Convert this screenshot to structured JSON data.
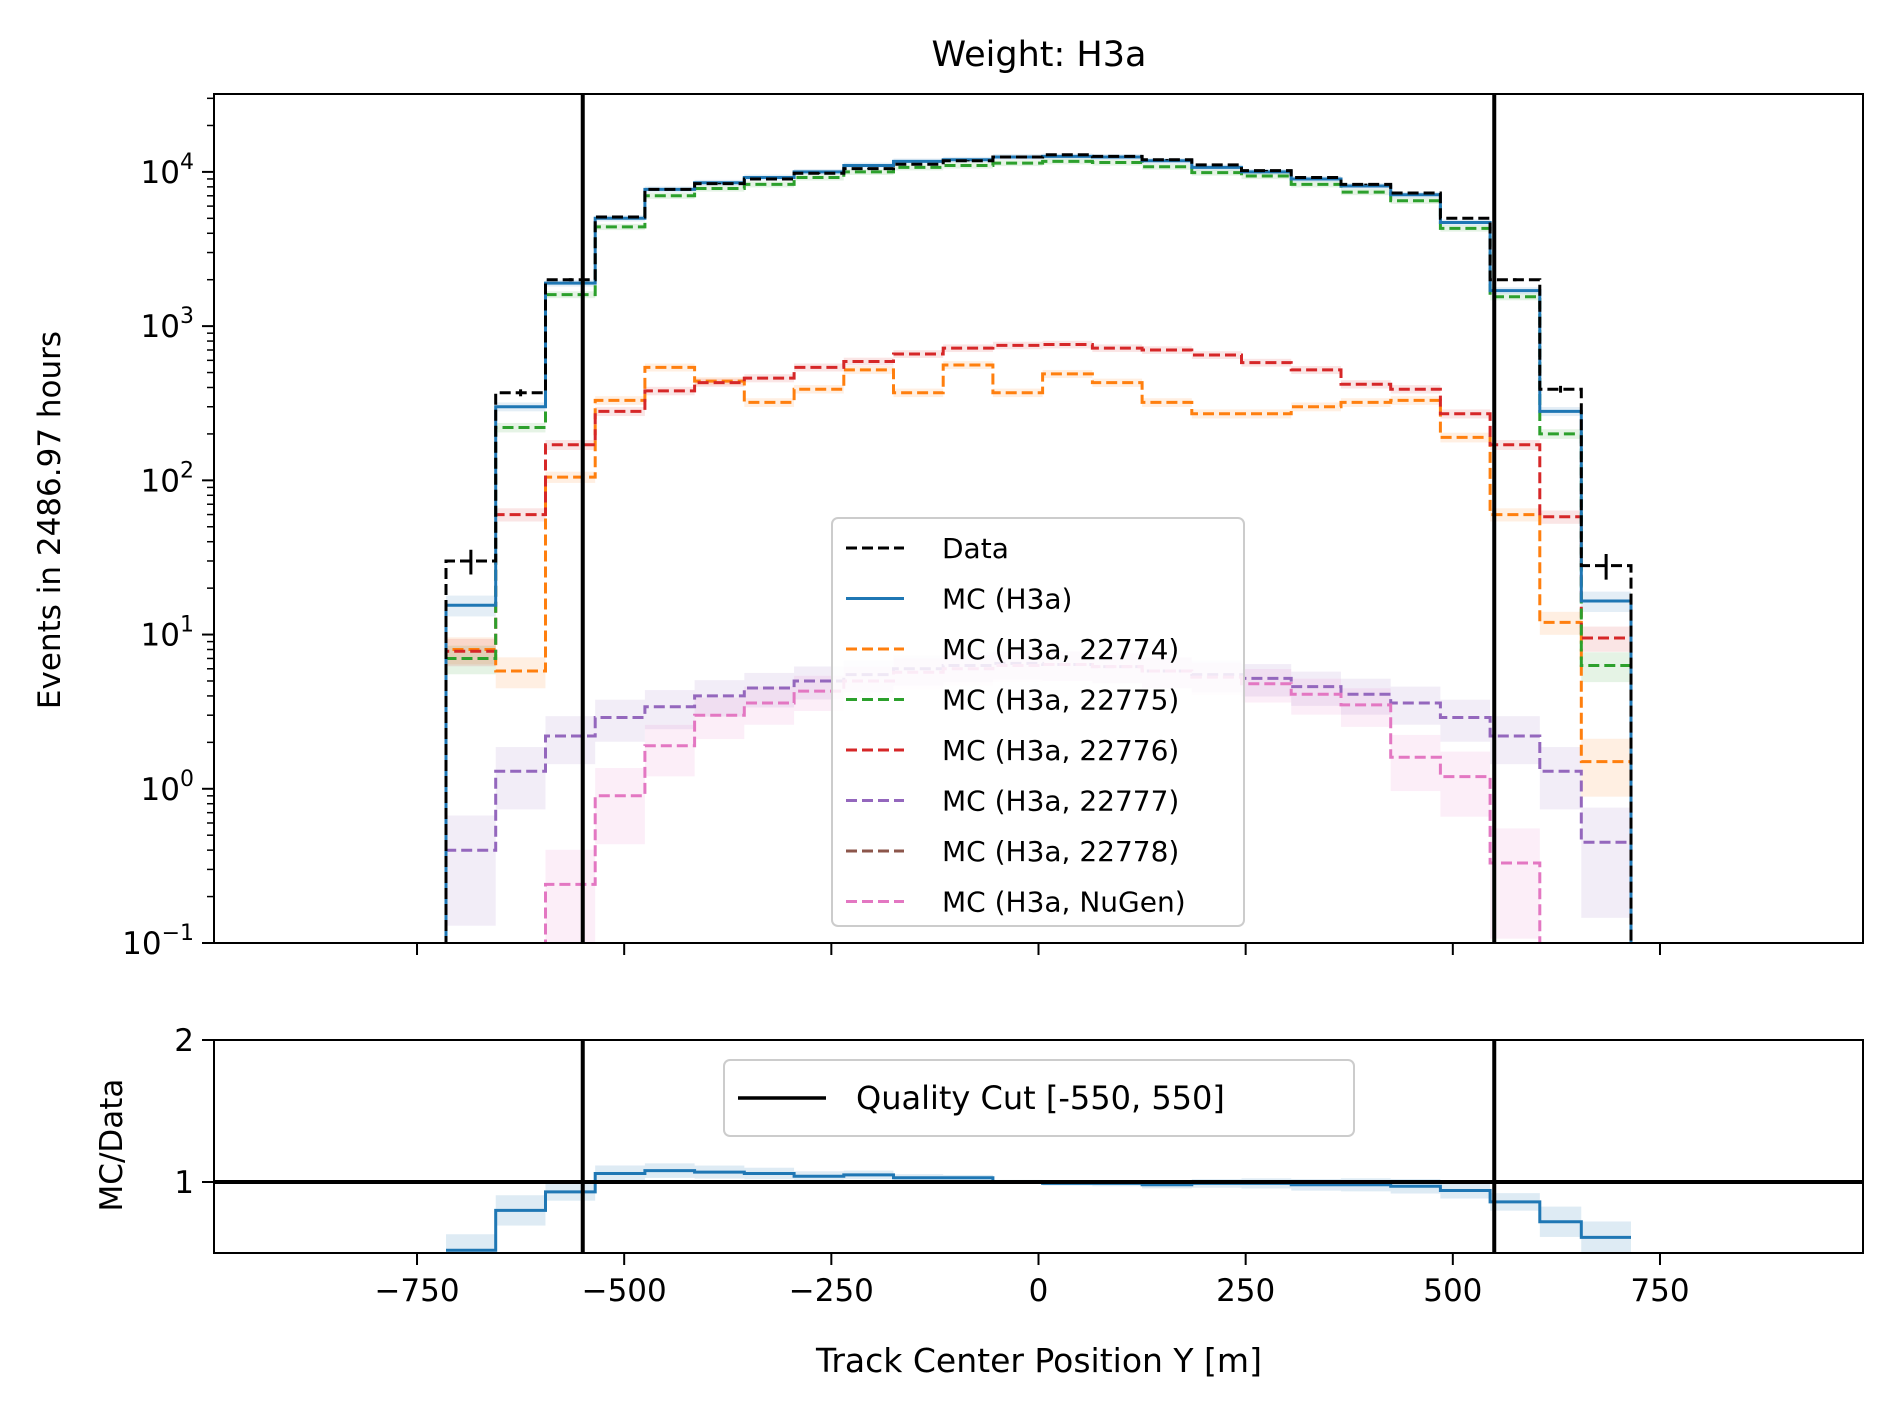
{
  "chart_data": [
    {
      "type": "line",
      "title": "Weight: H3a",
      "ylabel": "Events in 2486.97 hours",
      "yscale": "log",
      "ylim": [
        0.1,
        32000
      ],
      "xlim": [
        -995,
        995
      ],
      "grid": false,
      "legend_position": "center",
      "yticks": [
        {
          "value": 0.1,
          "base": "10",
          "exp": "−1"
        },
        {
          "value": 1,
          "base": "10",
          "exp": "0"
        },
        {
          "value": 10,
          "base": "10",
          "exp": "1"
        },
        {
          "value": 100,
          "base": "10",
          "exp": "2"
        },
        {
          "value": 1000,
          "base": "10",
          "exp": "3"
        },
        {
          "value": 10000,
          "base": "10",
          "exp": "4"
        }
      ],
      "bin_edges": [
        -715,
        -655,
        -595,
        -535,
        -475,
        -415,
        -355,
        -295,
        -235,
        -175,
        -115,
        -55,
        5,
        65,
        125,
        185,
        245,
        305,
        365,
        425,
        485,
        545,
        605,
        655,
        715
      ],
      "series": [
        {
          "name": "Data",
          "color": "#000000",
          "style": "dashed",
          "values": [
            30,
            370,
            2000,
            5100,
            7700,
            8400,
            9000,
            9800,
            10500,
            11200,
            11800,
            12500,
            12900,
            12600,
            12000,
            11100,
            10200,
            9200,
            8300,
            7300,
            5000,
            2000,
            390,
            28
          ]
        },
        {
          "name": "MC (H3a)",
          "color": "#1f77b4",
          "style": "solid",
          "values": [
            15.5,
            300,
            1900,
            5000,
            7700,
            8500,
            9200,
            10000,
            11000,
            11700,
            12000,
            12500,
            12600,
            12500,
            11800,
            10700,
            10000,
            9000,
            8100,
            7100,
            4700,
            1700,
            280,
            16.5
          ]
        },
        {
          "name": "MC (H3a, 22774)",
          "color": "#ff7f0e",
          "style": "dashed",
          "values": [
            8,
            5.8,
            105,
            330,
            540,
            440,
            320,
            390,
            520,
            370,
            560,
            370,
            490,
            430,
            320,
            270,
            270,
            300,
            320,
            330,
            190,
            60,
            12,
            1.5
          ]
        },
        {
          "name": "MC (H3a, 22775)",
          "color": "#2ca02c",
          "style": "dashed",
          "values": [
            7,
            220,
            1600,
            4400,
            7000,
            7800,
            8300,
            9200,
            10000,
            10700,
            11000,
            11400,
            11700,
            11500,
            10800,
            9900,
            9400,
            8300,
            7400,
            6500,
            4300,
            1550,
            200,
            6.3
          ]
        },
        {
          "name": "MC (H3a, 22776)",
          "color": "#d62728",
          "style": "dashed",
          "values": [
            7.8,
            60,
            170,
            280,
            380,
            430,
            460,
            540,
            590,
            660,
            720,
            750,
            760,
            720,
            700,
            650,
            580,
            520,
            420,
            390,
            270,
            170,
            58,
            9.5
          ]
        },
        {
          "name": "MC (H3a, 22777)",
          "color": "#9467bd",
          "style": "dashed",
          "values": [
            0.4,
            1.3,
            2.2,
            2.9,
            3.4,
            4.0,
            4.5,
            5.0,
            5.5,
            6.0,
            6.3,
            6.5,
            6.4,
            6.2,
            5.8,
            5.5,
            5.2,
            4.6,
            4.1,
            3.6,
            2.9,
            2.2,
            1.3,
            0.45
          ]
        },
        {
          "name": "MC (H3a, 22778)",
          "color": "#8c564b",
          "style": "dashed",
          "values": []
        },
        {
          "name": "MC (H3a, NuGen)",
          "color": "#e377c2",
          "style": "dashed",
          "values": [
            0,
            0,
            0.24,
            0.9,
            1.9,
            3.0,
            3.6,
            4.3,
            5.0,
            5.7,
            6.0,
            6.3,
            6.4,
            6.2,
            5.8,
            5.3,
            4.8,
            4.1,
            3.5,
            1.6,
            1.2,
            0.33,
            0,
            0
          ]
        }
      ],
      "annotations": [
        {
          "type": "vline",
          "x": -550,
          "color": "#000000"
        },
        {
          "type": "vline",
          "x": 550,
          "color": "#000000"
        }
      ]
    },
    {
      "type": "line",
      "xlabel": "Track Center Position Y [m]",
      "ylabel": "MC/Data",
      "ylim": [
        0.5,
        2
      ],
      "xlim": [
        -995,
        995
      ],
      "grid": false,
      "legend_position": "upper center",
      "yticks": [
        1,
        2
      ],
      "xticks": [
        -750,
        -500,
        -250,
        0,
        250,
        500,
        750
      ],
      "xtick_labels": [
        "−750",
        "−500",
        "−250",
        "0",
        "250",
        "500",
        "750"
      ],
      "bin_edges": [
        -715,
        -655,
        -595,
        -535,
        -475,
        -415,
        -355,
        -295,
        -235,
        -175,
        -115,
        -55,
        5,
        65,
        125,
        185,
        245,
        305,
        365,
        425,
        485,
        545,
        605,
        655,
        715
      ],
      "series": [
        {
          "name": "MC/Data",
          "color": "#1f77b4",
          "style": "solid",
          "values": [
            0.52,
            0.8,
            0.93,
            1.06,
            1.08,
            1.07,
            1.06,
            1.04,
            1.05,
            1.03,
            1.03,
            1.0,
            0.99,
            0.99,
            0.98,
            0.99,
            0.99,
            0.98,
            0.98,
            0.97,
            0.94,
            0.86,
            0.72,
            0.61
          ]
        }
      ],
      "annotations": [
        {
          "type": "hline",
          "y": 1,
          "color": "#000000"
        },
        {
          "type": "vline",
          "x": -550,
          "color": "#000000",
          "label": "Quality Cut [-550, 550]"
        },
        {
          "type": "vline",
          "x": 550,
          "color": "#000000"
        }
      ]
    }
  ]
}
